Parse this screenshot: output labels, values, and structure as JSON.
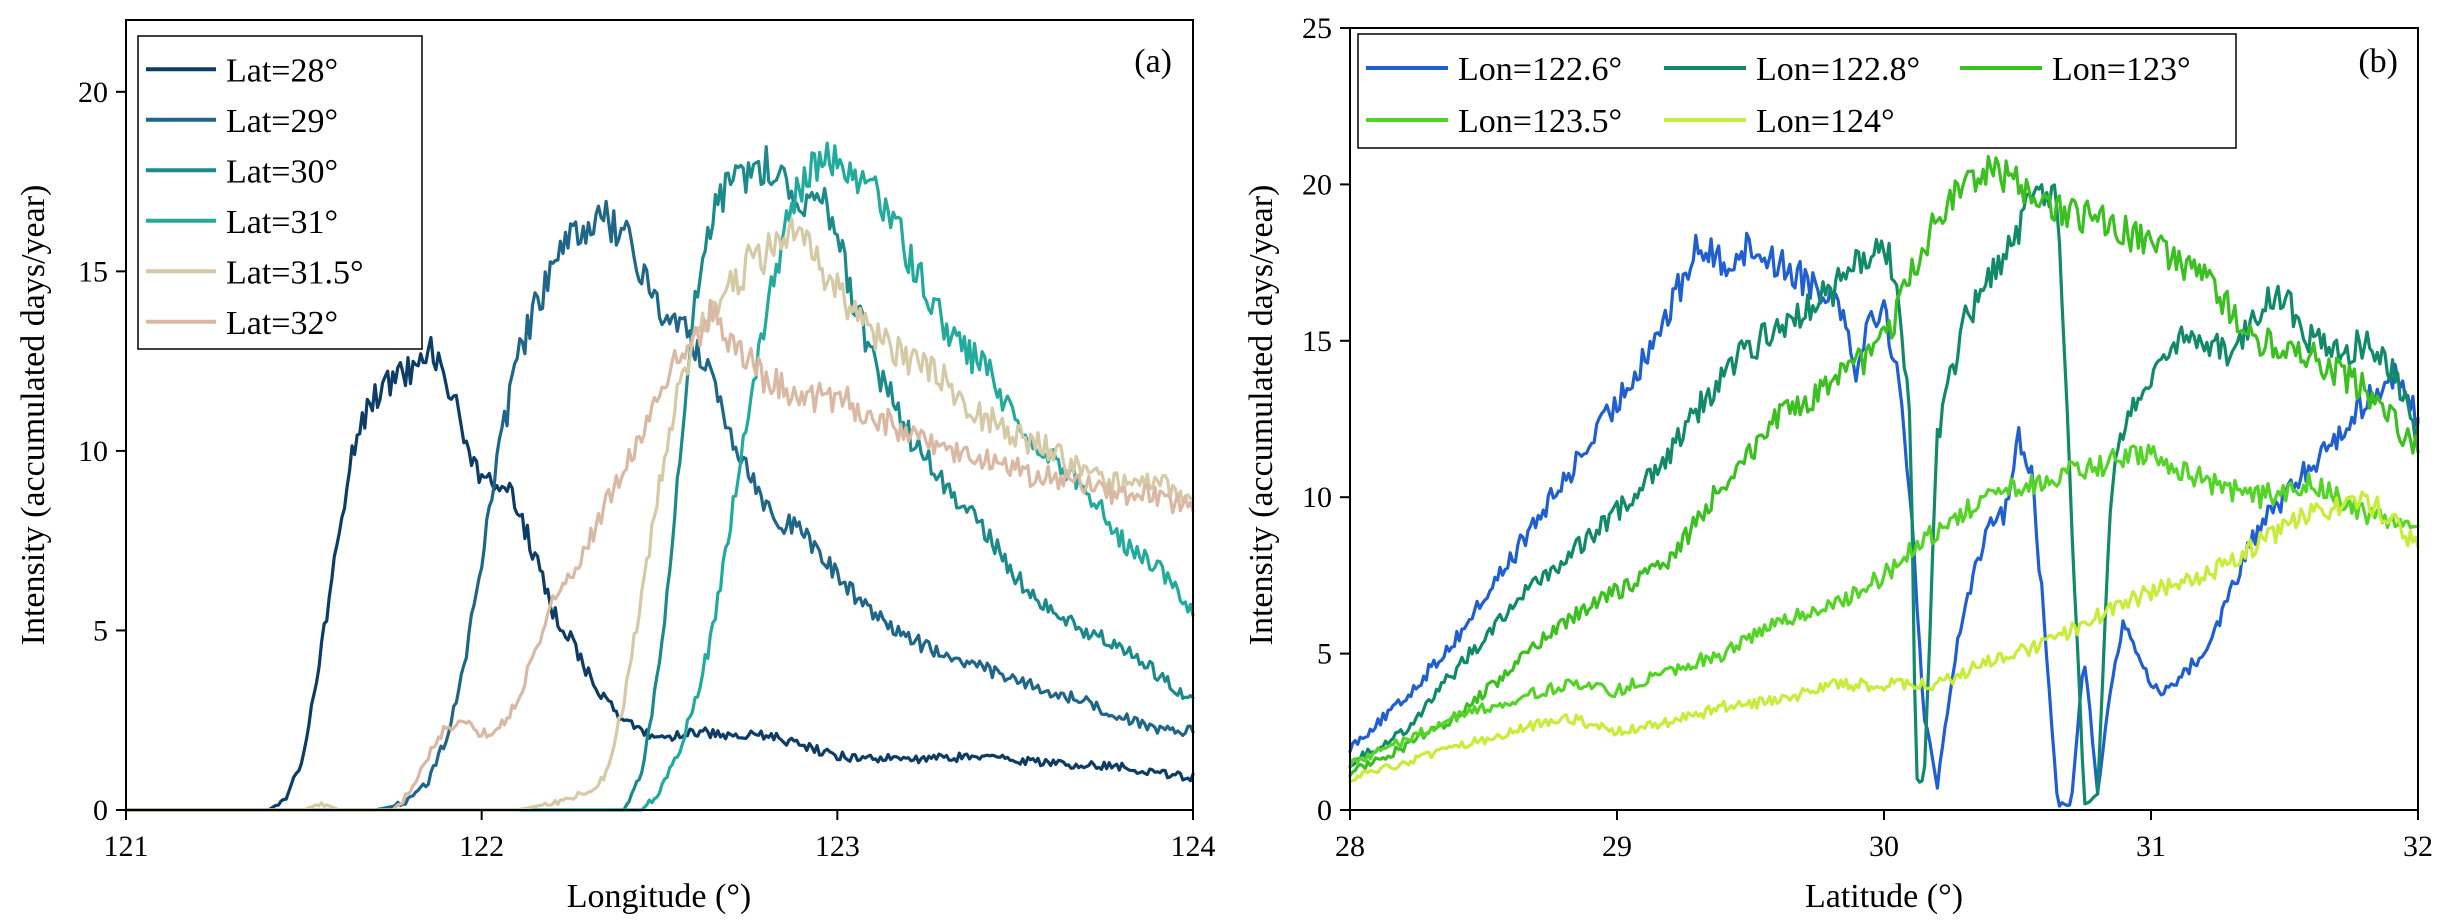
{
  "chart_data": [
    {
      "type": "line",
      "panel_label": "(a)",
      "xlabel": "Longitude (°)",
      "ylabel": "Intensity (accumulated days/year)",
      "xlim": [
        121,
        124
      ],
      "ylim": [
        0,
        22
      ],
      "xticks": [
        121,
        122,
        123,
        124
      ],
      "yticks": [
        0,
        5,
        10,
        15,
        20
      ],
      "legend_position": "top-left",
      "legend_columns": 1,
      "series": [
        {
          "name": "Lat=28°",
          "color": "#0d3c66",
          "x": [
            121.0,
            121.4,
            121.45,
            121.5,
            121.55,
            121.6,
            121.65,
            121.7,
            121.75,
            121.8,
            121.85,
            121.9,
            121.95,
            122.0,
            122.05,
            122.1,
            122.15,
            122.2,
            122.25,
            122.3,
            122.35,
            122.4,
            122.45,
            122.5,
            122.6,
            122.7,
            122.8,
            122.9,
            123.0,
            123.2,
            123.4,
            123.6,
            123.8,
            124.0
          ],
          "y": [
            0,
            0,
            0.3,
            1.5,
            4.5,
            8,
            10.5,
            11.5,
            12,
            12.3,
            13,
            12,
            10.5,
            9,
            9.2,
            8.5,
            7,
            5.5,
            4.8,
            3.8,
            3,
            2.5,
            2.2,
            2.0,
            2.2,
            2.0,
            2.1,
            1.8,
            1.5,
            1.4,
            1.5,
            1.3,
            1.2,
            0.9
          ]
        },
        {
          "name": "Lat=29°",
          "color": "#1f6688",
          "x": [
            121.0,
            121.7,
            121.75,
            121.8,
            121.85,
            121.9,
            121.95,
            122.0,
            122.05,
            122.1,
            122.15,
            122.2,
            122.25,
            122.3,
            122.35,
            122.4,
            122.45,
            122.5,
            122.55,
            122.6,
            122.65,
            122.7,
            122.75,
            122.8,
            122.85,
            122.9,
            123.0,
            123.1,
            123.2,
            123.3,
            123.4,
            123.5,
            123.6,
            123.7,
            123.8,
            123.9,
            124.0
          ],
          "y": [
            0,
            0,
            0.1,
            0.3,
            0.8,
            2,
            4,
            7,
            10,
            12.5,
            14,
            15,
            15.8,
            16.3,
            16.5,
            16,
            15,
            14,
            13.5,
            13,
            12,
            10.5,
            9.5,
            8.5,
            8,
            7.8,
            6.5,
            5.5,
            4.8,
            4.3,
            4,
            3.6,
            3.3,
            3,
            2.6,
            2.2,
            2.2
          ]
        },
        {
          "name": "Lat=30°",
          "color": "#1c8a8a",
          "x": [
            121.0,
            122.4,
            122.45,
            122.5,
            122.55,
            122.6,
            122.65,
            122.7,
            122.75,
            122.8,
            122.85,
            122.9,
            122.95,
            123.0,
            123.05,
            123.1,
            123.15,
            123.2,
            123.3,
            123.4,
            123.5,
            123.6,
            123.7,
            123.8,
            123.9,
            124.0
          ],
          "y": [
            0,
            0,
            1,
            4,
            9,
            14,
            16.5,
            17.5,
            17.7,
            18,
            17.5,
            17,
            17.3,
            16,
            14,
            12.5,
            11.5,
            10.5,
            9,
            8,
            6.5,
            5.5,
            5,
            4.5,
            3.8,
            3
          ]
        },
        {
          "name": "Lat=31°",
          "color": "#22aa9d",
          "x": [
            121.0,
            122.45,
            122.5,
            122.55,
            122.6,
            122.65,
            122.7,
            122.75,
            122.8,
            122.85,
            122.9,
            122.95,
            123.0,
            123.05,
            123.1,
            123.15,
            123.2,
            123.25,
            123.3,
            123.35,
            123.4,
            123.45,
            123.5,
            123.6,
            123.7,
            123.8,
            123.9,
            124.0
          ],
          "y": [
            0,
            0,
            0.5,
            1.5,
            3,
            5,
            8,
            11,
            14,
            16,
            17.5,
            18,
            18.2,
            17.8,
            17.3,
            16.5,
            15.5,
            14.5,
            13.5,
            12.8,
            12.5,
            11.8,
            10.8,
            9.8,
            9,
            7.5,
            6.8,
            5.5
          ]
        },
        {
          "name": "Lat=31.5°",
          "color": "#d6c9a6",
          "x": [
            121.0,
            121.3,
            121.5,
            121.55,
            121.6,
            122.1,
            122.2,
            122.3,
            122.35,
            122.4,
            122.45,
            122.5,
            122.55,
            122.6,
            122.65,
            122.7,
            122.75,
            122.8,
            122.85,
            122.9,
            122.95,
            123.0,
            123.1,
            123.2,
            123.3,
            123.4,
            123.5,
            123.6,
            123.7,
            123.8,
            123.9,
            124.0
          ],
          "y": [
            0,
            0,
            0,
            0.2,
            0,
            0,
            0.2,
            0.5,
            1,
            3,
            6,
            9,
            11.5,
            13,
            14,
            14.5,
            15.2,
            15.5,
            16,
            15.8,
            15.2,
            14.5,
            13.3,
            12.5,
            12,
            11,
            10.5,
            10,
            9.3,
            9,
            9.2,
            8.5
          ]
        },
        {
          "name": "Lat=32°",
          "color": "#d9b9a3",
          "x": [
            121.0,
            121.75,
            121.8,
            121.85,
            121.9,
            121.95,
            122.0,
            122.05,
            122.1,
            122.15,
            122.2,
            122.25,
            122.3,
            122.35,
            122.4,
            122.45,
            122.5,
            122.55,
            122.6,
            122.65,
            122.7,
            122.8,
            122.9,
            123.0,
            123.1,
            123.2,
            123.3,
            123.4,
            123.5,
            123.6,
            123.7,
            123.8,
            123.9,
            124.0
          ],
          "y": [
            0,
            0,
            0.5,
            1.5,
            2.3,
            2.5,
            2.1,
            2.3,
            3,
            4.5,
            5.8,
            6.5,
            7.5,
            8.5,
            9.5,
            10.5,
            11.5,
            12.5,
            13.2,
            13.8,
            13,
            12,
            11.5,
            11.5,
            11,
            10.5,
            10,
            9.8,
            9.5,
            9.2,
            9,
            8.8,
            8.7,
            8.5
          ]
        }
      ]
    },
    {
      "type": "line",
      "panel_label": "(b)",
      "xlabel": "Latitude (°)",
      "ylabel": "Intensity (accumulated days/year)",
      "xlim": [
        28,
        32
      ],
      "ylim": [
        0,
        25
      ],
      "xticks": [
        28,
        29,
        30,
        31,
        32
      ],
      "yticks": [
        0,
        5,
        10,
        15,
        20,
        25
      ],
      "legend_position": "top-left",
      "legend_columns": 3,
      "series": [
        {
          "name": "Lon=122.6°",
          "color": "#1f5fd0",
          "x": [
            28.0,
            28.2,
            28.4,
            28.6,
            28.8,
            29.0,
            29.2,
            29.3,
            29.4,
            29.5,
            29.6,
            29.7,
            29.8,
            29.85,
            29.9,
            29.95,
            30.0,
            30.05,
            30.1,
            30.15,
            30.2,
            30.25,
            30.3,
            30.35,
            30.4,
            30.45,
            30.5,
            30.55,
            30.6,
            30.65,
            30.7,
            30.75,
            30.8,
            30.85,
            30.9,
            30.95,
            31.0,
            31.05,
            31.1,
            31.2,
            31.3,
            31.4,
            31.5,
            31.6,
            31.7,
            31.8,
            31.9,
            32.0
          ],
          "y": [
            2,
            3.5,
            5.5,
            8,
            10.5,
            13,
            16,
            18,
            17.5,
            18,
            17.5,
            17,
            16.5,
            16,
            14,
            16,
            16,
            14,
            10,
            3,
            0.8,
            4,
            6.5,
            8,
            9,
            9.5,
            12,
            11,
            6,
            0.2,
            0.2,
            5,
            0.5,
            4,
            6,
            5,
            4,
            3.8,
            4.2,
            5,
            7,
            9,
            10,
            11,
            12,
            13,
            14,
            12.5
          ]
        },
        {
          "name": "Lon=122.8°",
          "color": "#128a6a",
          "x": [
            28.0,
            28.2,
            28.4,
            28.6,
            28.8,
            29.0,
            29.2,
            29.4,
            29.6,
            29.8,
            29.9,
            30.0,
            30.05,
            30.1,
            30.12,
            30.15,
            30.2,
            30.3,
            30.4,
            30.5,
            30.55,
            30.6,
            30.65,
            30.7,
            30.75,
            30.8,
            30.85,
            30.9,
            31.0,
            31.1,
            31.2,
            31.3,
            31.4,
            31.5,
            31.6,
            31.7,
            31.8,
            31.9,
            32.0
          ],
          "y": [
            1.5,
            2.5,
            4.5,
            6.5,
            8,
            9.5,
            11.5,
            14,
            15.5,
            16.5,
            17.5,
            18,
            17,
            12,
            1,
            0.8,
            12,
            15.5,
            17,
            18.5,
            19.5,
            19.8,
            19.5,
            10,
            0.2,
            0.5,
            10,
            12.5,
            14,
            15,
            15,
            14.5,
            16,
            16.5,
            15,
            14.5,
            15,
            14,
            12
          ]
        },
        {
          "name": "Lon=123°",
          "color": "#3cbf20",
          "x": [
            28.0,
            28.2,
            28.4,
            28.6,
            28.8,
            29.0,
            29.2,
            29.4,
            29.6,
            29.8,
            30.0,
            30.1,
            30.2,
            30.3,
            30.4,
            30.5,
            30.6,
            30.7,
            30.8,
            30.9,
            31.0,
            31.2,
            31.4,
            31.6,
            31.8,
            32.0
          ],
          "y": [
            1.2,
            2,
            3,
            4.5,
            6,
            7,
            8,
            10.5,
            12.5,
            13.5,
            15,
            17,
            19,
            20,
            20.5,
            20,
            19.5,
            19,
            19,
            18.5,
            18,
            17,
            15,
            14.5,
            13.5,
            11.5
          ]
        },
        {
          "name": "Lon=123.5°",
          "color": "#55d428",
          "x": [
            28.0,
            28.2,
            28.4,
            28.6,
            28.8,
            29.0,
            29.2,
            29.4,
            29.6,
            29.8,
            30.0,
            30.2,
            30.4,
            30.6,
            30.8,
            31.0,
            31.2,
            31.4,
            31.6,
            31.8,
            32.0
          ],
          "y": [
            1.5,
            2.2,
            3,
            3.5,
            4,
            3.8,
            4.5,
            5,
            6,
            6.5,
            7.5,
            9,
            10,
            10.5,
            11,
            11.5,
            10.5,
            10,
            10.5,
            9.5,
            8.8
          ]
        },
        {
          "name": "Lon=124°",
          "color": "#c8ec3a",
          "x": [
            28.0,
            28.2,
            28.4,
            28.6,
            28.8,
            29.0,
            29.2,
            29.4,
            29.6,
            29.8,
            30.0,
            30.2,
            30.4,
            30.6,
            30.8,
            31.0,
            31.2,
            31.4,
            31.6,
            31.8,
            32.0
          ],
          "y": [
            1,
            1.5,
            2,
            2.5,
            3,
            2.5,
            2.8,
            3.3,
            3.5,
            4,
            4,
            4,
            4.8,
            5.3,
            6.2,
            7,
            7.5,
            8.5,
            9.5,
            10,
            8.5
          ]
        }
      ]
    }
  ]
}
